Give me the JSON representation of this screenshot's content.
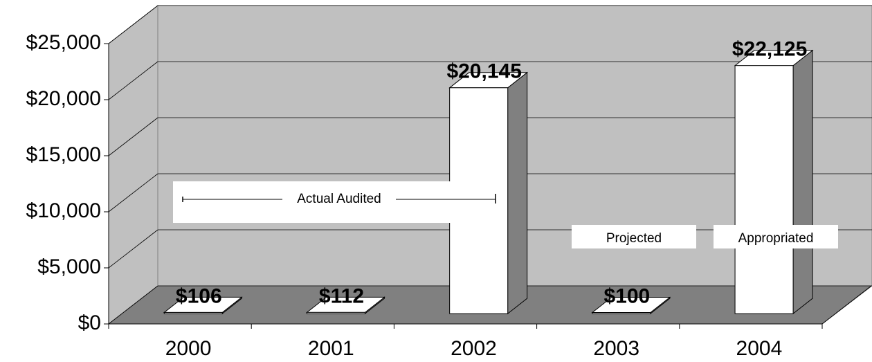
{
  "chart_data": {
    "type": "bar3d",
    "categories": [
      "2000",
      "2001",
      "2002",
      "2003",
      "2004"
    ],
    "values": [
      106,
      112,
      20145,
      100,
      22125
    ],
    "value_labels": [
      "$106",
      "$112",
      "$20,145",
      "$100",
      "$22,125"
    ],
    "color": "#ffffff",
    "ylim": [
      0,
      25000
    ],
    "yticks": [
      {
        "value": 0,
        "label": "$0"
      },
      {
        "value": 5000,
        "label": "$5,000"
      },
      {
        "value": 10000,
        "label": "$10,000"
      },
      {
        "value": 15000,
        "label": "$15,000"
      },
      {
        "value": 20000,
        "label": "$20,000"
      },
      {
        "value": 25000,
        "label": "$25,000"
      }
    ],
    "grid": true,
    "annotations": [
      "Actual Audited",
      "Projected",
      "Appropriated"
    ]
  }
}
